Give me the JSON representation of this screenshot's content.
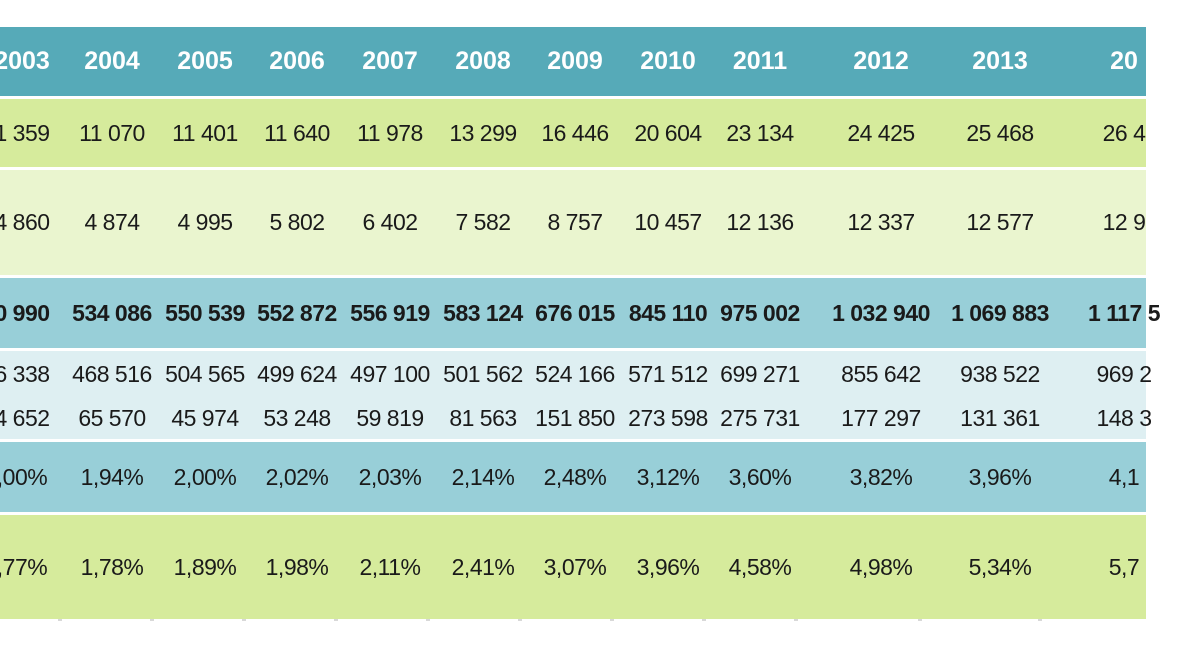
{
  "table": {
    "years": [
      "2003",
      "2004",
      "2005",
      "2006",
      "2007",
      "2008",
      "2009",
      "2010",
      "2011",
      "2012",
      "2013",
      "20"
    ],
    "row1": [
      "1 359",
      "11 070",
      "11 401",
      "11 640",
      "11 978",
      "13 299",
      "16 446",
      "20 604",
      "23 134",
      "24 425",
      "25 468",
      "26 4"
    ],
    "row2": [
      "4 860",
      "4 874",
      "4 995",
      "5 802",
      "6 402",
      "7 582",
      "8 757",
      "10 457",
      "12 136",
      "12 337",
      "12 577",
      "12 9"
    ],
    "row3": [
      "0 990",
      "534 086",
      "550 539",
      "552 872",
      "556 919",
      "583 124",
      "676 015",
      "845 110",
      "975 002",
      "1 032 940",
      "1 069 883",
      "1 117 5"
    ],
    "row4a": [
      "6 338",
      "468 516",
      "504 565",
      "499 624",
      "497 100",
      "501 562",
      "524 166",
      "571 512",
      "699 271",
      "855 642",
      "938 522",
      "969 2"
    ],
    "row4b": [
      "4 652",
      "65 570",
      "45 974",
      "53 248",
      "59 819",
      "81 563",
      "151 850",
      "273 598",
      "275 731",
      "177 297",
      "131 361",
      "148 3"
    ],
    "row5": [
      ",00%",
      "1,94%",
      "2,00%",
      "2,02%",
      "2,03%",
      "2,14%",
      "2,48%",
      "3,12%",
      "3,60%",
      "3,82%",
      "3,96%",
      "4,1"
    ],
    "row6": [
      ",77%",
      "1,78%",
      "1,89%",
      "1,98%",
      "2,11%",
      "2,41%",
      "3,07%",
      "3,96%",
      "4,58%",
      "4,98%",
      "5,34%",
      "5,7"
    ]
  },
  "colors": {
    "header": "#56aab8",
    "green_row": "#d6eb9c",
    "light_green_row": "#eaf5cf",
    "teal_row": "#98cfd8",
    "light_teal_row": "#deeff2"
  }
}
